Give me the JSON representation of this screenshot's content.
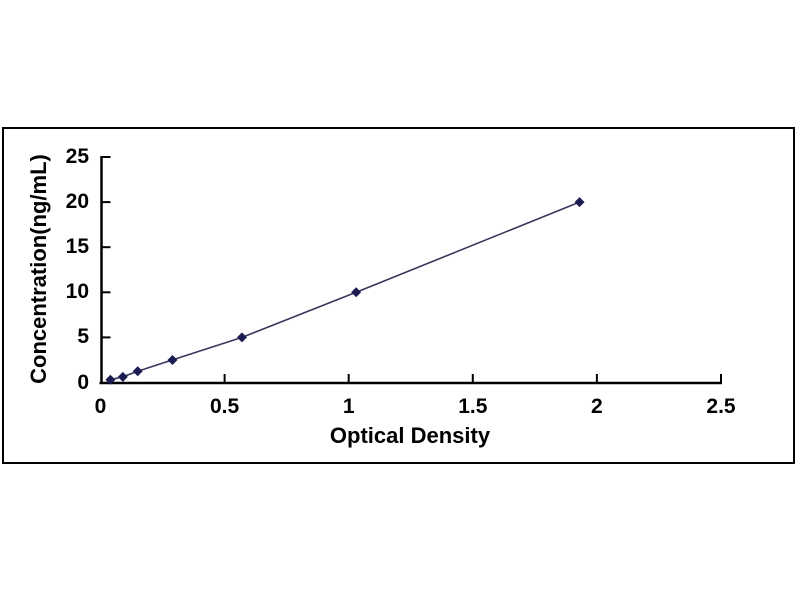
{
  "page": {
    "background": "#ffffff"
  },
  "chart_frame": {
    "border_color": "#000000",
    "fill": "#ffffff"
  },
  "chart_data": {
    "type": "line",
    "title": "",
    "xlabel": "Optical Density",
    "ylabel": "Concentration(ng/mL)",
    "x": [
      0.04,
      0.09,
      0.15,
      0.29,
      0.57,
      1.03,
      1.93
    ],
    "y": [
      0.31,
      0.63,
      1.25,
      2.5,
      5,
      10,
      20
    ],
    "xlim": [
      0,
      2.5
    ],
    "ylim": [
      0,
      25
    ],
    "x_ticks": [
      0,
      0.5,
      1,
      1.5,
      2,
      2.5
    ],
    "x_tick_labels": [
      "0",
      "0.5",
      "1",
      "1.5",
      "2",
      "2.5"
    ],
    "y_ticks": [
      0,
      5,
      10,
      15,
      20,
      25
    ],
    "y_tick_labels": [
      "0",
      "5",
      "10",
      "15",
      "20",
      "25"
    ],
    "grid": false,
    "legend": "none",
    "marker": "diamond",
    "colors": {
      "marker": "#1c1c52",
      "line": "#38385c",
      "axis": "#000000",
      "text": "#000000"
    }
  }
}
